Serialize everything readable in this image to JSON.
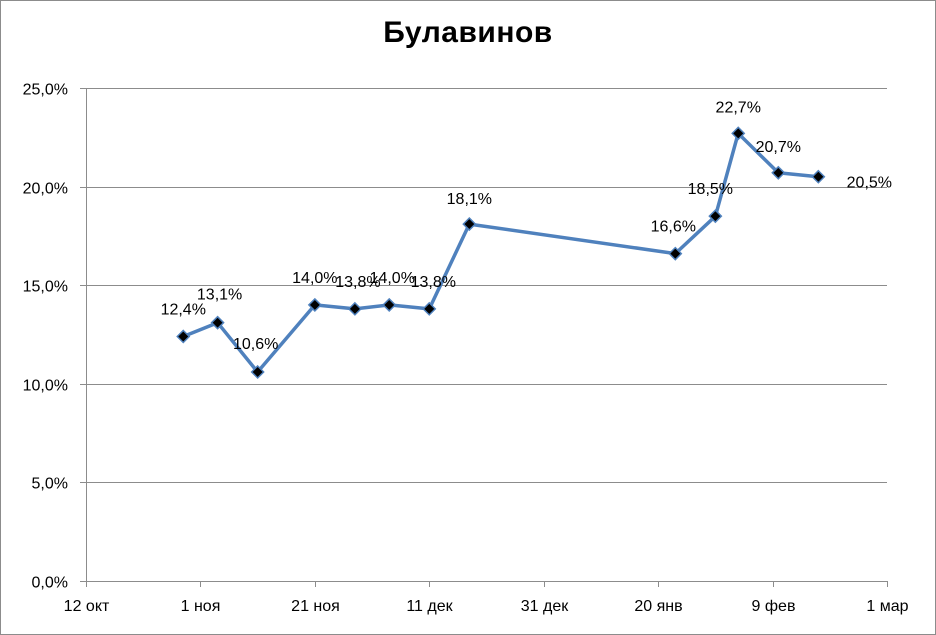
{
  "chart_data": {
    "type": "line",
    "title": "Булавинов",
    "xlabel": "",
    "ylabel": "",
    "x_axis": {
      "type": "date",
      "range": [
        "2024-10-12",
        "2025-03-01"
      ],
      "ticks": [
        {
          "date": "2024-10-12",
          "label": "12 окт"
        },
        {
          "date": "2024-11-01",
          "label": "1 ноя"
        },
        {
          "date": "2024-11-21",
          "label": "21 ноя"
        },
        {
          "date": "2024-12-11",
          "label": "11 дек"
        },
        {
          "date": "2024-12-31",
          "label": "31 дек"
        },
        {
          "date": "2025-01-20",
          "label": "20 янв"
        },
        {
          "date": "2025-02-09",
          "label": "9 фев"
        },
        {
          "date": "2025-03-01",
          "label": "1 мар"
        }
      ]
    },
    "y_axis": {
      "range": [
        0,
        25
      ],
      "ticks": [
        0,
        5,
        10,
        15,
        20,
        25
      ],
      "tick_labels": [
        "0,0%",
        "5,0%",
        "10,0%",
        "15,0%",
        "20,0%",
        "25,0%"
      ]
    },
    "grid": "horizontal",
    "legend": "none",
    "series": [
      {
        "color": "#4f81bd",
        "marker": "diamond",
        "marker_color": "#000000",
        "points": [
          {
            "x": "2024-10-29",
            "y": 12.4,
            "label": "12,4%"
          },
          {
            "x": "2024-11-04",
            "y": 13.1,
            "label": "13,1%"
          },
          {
            "x": "2024-11-11",
            "y": 10.6,
            "label": "10,6%"
          },
          {
            "x": "2024-11-21",
            "y": 14.0,
            "label": "14,0%"
          },
          {
            "x": "2024-11-28",
            "y": 13.8,
            "label": "13,8%"
          },
          {
            "x": "2024-12-04",
            "y": 14.0,
            "label": "14,0%"
          },
          {
            "x": "2024-12-11",
            "y": 13.8,
            "label": "13,8%"
          },
          {
            "x": "2024-12-18",
            "y": 18.1,
            "label": "18,1%"
          },
          {
            "x": "2025-01-23",
            "y": 16.6,
            "label": "16,6%"
          },
          {
            "x": "2025-01-30",
            "y": 18.5,
            "label": "18,5%"
          },
          {
            "x": "2025-02-03",
            "y": 22.7,
            "label": "22,7%"
          },
          {
            "x": "2025-02-10",
            "y": 20.7,
            "label": "20,7%"
          },
          {
            "x": "2025-02-17",
            "y": 20.5,
            "label": "20,5%"
          }
        ]
      }
    ]
  }
}
